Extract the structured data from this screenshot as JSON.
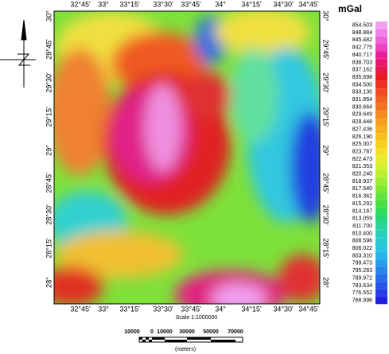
{
  "map": {
    "top_labels": [
      "32°45'",
      "33°",
      "33°15'",
      "33°30'",
      "33°45'",
      "34°",
      "34°15'",
      "34°30'",
      "34°45'"
    ],
    "bottom_labels": [
      "32°45'",
      "33°",
      "33°15'",
      "33°30'",
      "33°45'",
      "34°",
      "34°15'",
      "34°30'",
      "34°45'"
    ],
    "left_labels": [
      "30°",
      "29°45'",
      "29°30'",
      "29°15'",
      "29°",
      "28°45'",
      "28°30'",
      "28°15'",
      "28°"
    ],
    "right_labels": [
      "30°",
      "29°45'",
      "29°30'",
      "29°15'",
      "29°",
      "28°45'",
      "28°30'",
      "28°15'",
      "28°"
    ]
  },
  "legend": {
    "unit": "mGal",
    "values": [
      "854.503",
      "848.884",
      "845.482",
      "842.775",
      "840.717",
      "838.703",
      "837.162",
      "835.698",
      "834.500",
      "833.130",
      "831.854",
      "830.664",
      "829.649",
      "828.448",
      "827.436",
      "826.190",
      "825.007",
      "823.787",
      "822.473",
      "821.353",
      "820.240",
      "818.937",
      "817.540",
      "816.362",
      "815.292",
      "814.187",
      "813.059",
      "811.700",
      "810.400",
      "808.596",
      "806.022",
      "803.310",
      "799.473",
      "795.283",
      "789.972",
      "783.634",
      "776.552",
      "768.996"
    ]
  },
  "scale": {
    "text": "Scale 1:1000000",
    "bar_labels": [
      "10000",
      "0",
      "10000",
      "30000",
      "50000",
      "70000"
    ],
    "unit": "(meters)"
  }
}
